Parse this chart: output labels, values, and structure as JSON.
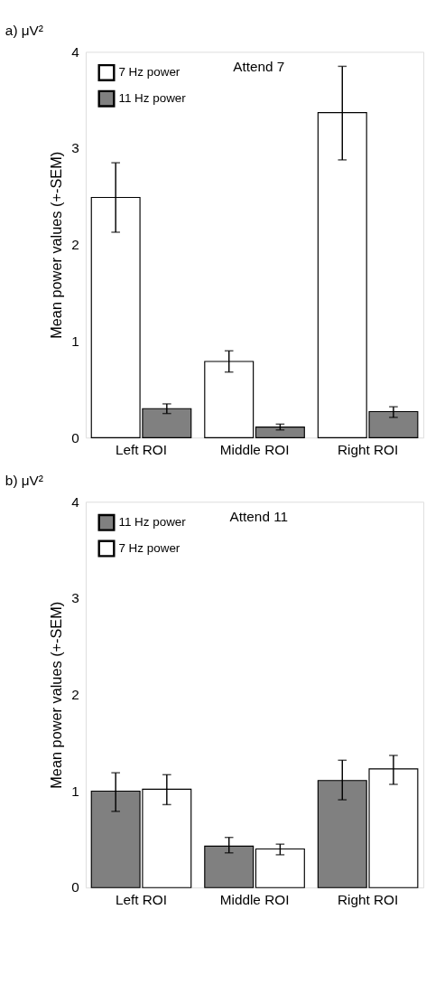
{
  "chart_data": [
    {
      "type": "bar",
      "title": "a)  μV²",
      "subtitle": "Attend 7",
      "ylabel": "Mean power values (+-SEM)",
      "categories": [
        "Left ROI",
        "Middle ROI",
        "Right ROI"
      ],
      "ylim": [
        0,
        4
      ],
      "yticks": [
        0,
        1,
        2,
        3,
        4
      ],
      "grid": false,
      "legend": "top left",
      "series": [
        {
          "name": "7 Hz power",
          "color": "#ffffff",
          "values": [
            2.49,
            0.79,
            3.37
          ],
          "errors": [
            [
              2.13,
              2.85
            ],
            [
              0.68,
              0.9
            ],
            [
              2.88,
              3.85
            ]
          ]
        },
        {
          "name": "11 Hz power",
          "color": "#808080",
          "values": [
            0.3,
            0.11,
            0.27
          ],
          "errors": [
            [
              0.25,
              0.35
            ],
            [
              0.08,
              0.14
            ],
            [
              0.21,
              0.32
            ]
          ]
        }
      ]
    },
    {
      "type": "bar",
      "title": "b)  μV²",
      "subtitle": "Attend 11",
      "ylabel": "Mean power values (+-SEM)",
      "categories": [
        "Left ROI",
        "Middle ROI",
        "Right ROI"
      ],
      "ylim": [
        0,
        4
      ],
      "yticks": [
        0,
        1,
        2,
        3,
        4
      ],
      "grid": false,
      "legend": "top left",
      "series": [
        {
          "name": "11 Hz power",
          "color": "#808080",
          "values": [
            1.0,
            0.43,
            1.11
          ],
          "errors": [
            [
              0.79,
              1.19
            ],
            [
              0.36,
              0.52
            ],
            [
              0.91,
              1.32
            ]
          ]
        },
        {
          "name": "7 Hz power",
          "color": "#ffffff",
          "values": [
            1.02,
            0.4,
            1.23
          ],
          "errors": [
            [
              0.86,
              1.17
            ],
            [
              0.34,
              0.45
            ],
            [
              1.07,
              1.37
            ]
          ]
        }
      ]
    }
  ]
}
